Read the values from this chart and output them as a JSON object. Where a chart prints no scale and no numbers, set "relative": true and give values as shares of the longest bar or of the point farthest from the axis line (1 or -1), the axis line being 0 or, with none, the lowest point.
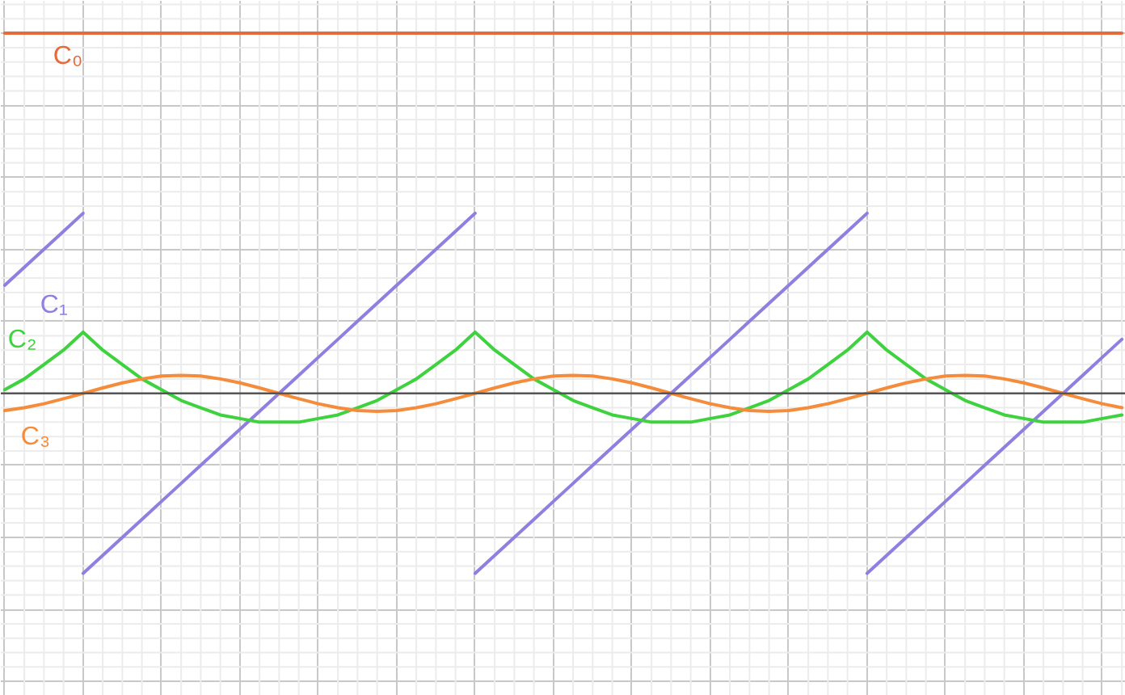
{
  "chart_data": {
    "type": "line",
    "relative": true,
    "grid": true,
    "categories": [
      null,
      null,
      null,
      null,
      null,
      null,
      null,
      null,
      null,
      null,
      null,
      null,
      null,
      null,
      null,
      null,
      null,
      null,
      null,
      null,
      null,
      null,
      null,
      null,
      null,
      null,
      null,
      null,
      null,
      null,
      null,
      null,
      null,
      null,
      null,
      null,
      null,
      null,
      null,
      null,
      null,
      null,
      null,
      null,
      null,
      null,
      null,
      null,
      null,
      null,
      null,
      null,
      null,
      null,
      null,
      null,
      null,
      null
    ],
    "series": [
      {
        "name": "C₀",
        "color": "#e8693a",
        "values": [
          1,
          1,
          1,
          1,
          1,
          1,
          1,
          1,
          1,
          1,
          1,
          1,
          1,
          1,
          1,
          1,
          1,
          1,
          1,
          1,
          1,
          1,
          1,
          1,
          1,
          1,
          1,
          1,
          1,
          1,
          1,
          1,
          1,
          1,
          1,
          1,
          1,
          1,
          1,
          1,
          1,
          1,
          1,
          1,
          1,
          1,
          1,
          1,
          1,
          1,
          1,
          1,
          1,
          1,
          1,
          1,
          1,
          1
        ]
      },
      {
        "name": "C₁",
        "color": "#8f7fe0",
        "values": [
          0.3,
          0.35,
          0.4,
          0.45,
          0.5,
          null,
          null,
          null,
          null,
          null,
          null,
          null,
          null,
          null,
          null,
          null,
          null,
          null,
          null,
          null,
          null,
          null,
          null,
          null,
          null,
          null,
          null,
          null,
          null,
          null,
          null,
          null,
          null,
          null,
          null,
          null,
          null,
          null,
          null,
          null,
          null,
          null,
          null,
          null,
          null,
          null,
          null,
          null,
          null,
          null,
          null,
          null,
          null,
          null,
          null,
          null,
          null,
          null
        ]
      },
      {
        "color": "#8f7fe0",
        "values": [
          null,
          null,
          null,
          null,
          -0.5,
          -0.45,
          -0.4,
          -0.35,
          -0.3,
          -0.25,
          -0.2,
          -0.15,
          -0.1,
          -0.05,
          0,
          0.05,
          0.1,
          0.15,
          0.2,
          0.25,
          0.3,
          0.35,
          0.4,
          0.45,
          0.5,
          null,
          null,
          null,
          null,
          null,
          null,
          null,
          null,
          null,
          null,
          null,
          null,
          null,
          null,
          null,
          null,
          null,
          null,
          null,
          null,
          null,
          null,
          null,
          null,
          null,
          null,
          null,
          null,
          null,
          null,
          null,
          null,
          null
        ]
      },
      {
        "color": "#8f7fe0",
        "values": [
          null,
          null,
          null,
          null,
          null,
          null,
          null,
          null,
          null,
          null,
          null,
          null,
          null,
          null,
          null,
          null,
          null,
          null,
          null,
          null,
          null,
          null,
          null,
          null,
          -0.5,
          -0.45,
          -0.4,
          -0.35,
          -0.3,
          -0.25,
          -0.2,
          -0.15,
          -0.1,
          -0.05,
          0,
          0.05,
          0.1,
          0.15,
          0.2,
          0.25,
          0.3,
          0.35,
          0.4,
          0.45,
          0.5,
          null,
          null,
          null,
          null,
          null,
          null,
          null,
          null,
          null,
          null,
          null,
          null,
          null
        ]
      },
      {
        "color": "#8f7fe0",
        "values": [
          null,
          null,
          null,
          null,
          null,
          null,
          null,
          null,
          null,
          null,
          null,
          null,
          null,
          null,
          null,
          null,
          null,
          null,
          null,
          null,
          null,
          null,
          null,
          null,
          null,
          null,
          null,
          null,
          null,
          null,
          null,
          null,
          null,
          null,
          null,
          null,
          null,
          null,
          null,
          null,
          null,
          null,
          null,
          null,
          -0.5,
          -0.45,
          -0.4,
          -0.35,
          -0.3,
          -0.25,
          -0.2,
          -0.15,
          -0.1,
          -0.05,
          0,
          0.05,
          0.1,
          0.15
        ]
      },
      {
        "name": "C₂",
        "color": "#3fd23f",
        "values": [
          0.01,
          0.04,
          0.08,
          0.12,
          0.17,
          0.12,
          0.08,
          0.04,
          0.01,
          -0.02,
          -0.04,
          -0.06,
          -0.07,
          -0.08,
          -0.08,
          -0.08,
          -0.07,
          -0.06,
          -0.04,
          -0.02,
          0.01,
          0.04,
          0.08,
          0.12,
          0.17,
          0.12,
          0.08,
          0.04,
          0.01,
          -0.02,
          -0.04,
          -0.06,
          -0.07,
          -0.08,
          -0.08,
          -0.08,
          -0.07,
          -0.06,
          -0.04,
          -0.02,
          0.01,
          0.04,
          0.08,
          0.12,
          0.17,
          0.12,
          0.08,
          0.04,
          0.01,
          -0.02,
          -0.04,
          -0.06,
          -0.07,
          -0.08,
          -0.08,
          -0.08,
          -0.07,
          -0.06
        ]
      },
      {
        "name": "C₃",
        "color": "#f58c3c",
        "values": [
          -0.048,
          -0.04,
          -0.029,
          -0.015,
          0,
          0.015,
          0.029,
          0.04,
          0.048,
          0.05,
          0.048,
          0.04,
          0.029,
          0.015,
          0,
          -0.015,
          -0.029,
          -0.04,
          -0.048,
          -0.05,
          -0.048,
          -0.04,
          -0.029,
          -0.015,
          0,
          0.015,
          0.029,
          0.04,
          0.048,
          0.05,
          0.048,
          0.04,
          0.029,
          0.015,
          0,
          -0.015,
          -0.029,
          -0.04,
          -0.048,
          -0.05,
          -0.048,
          -0.04,
          -0.029,
          -0.015,
          0,
          0.015,
          0.029,
          0.04,
          0.048,
          0.05,
          0.048,
          0.04,
          0.029,
          0.015,
          0,
          -0.015,
          -0.029,
          -0.04
        ]
      }
    ]
  }
}
